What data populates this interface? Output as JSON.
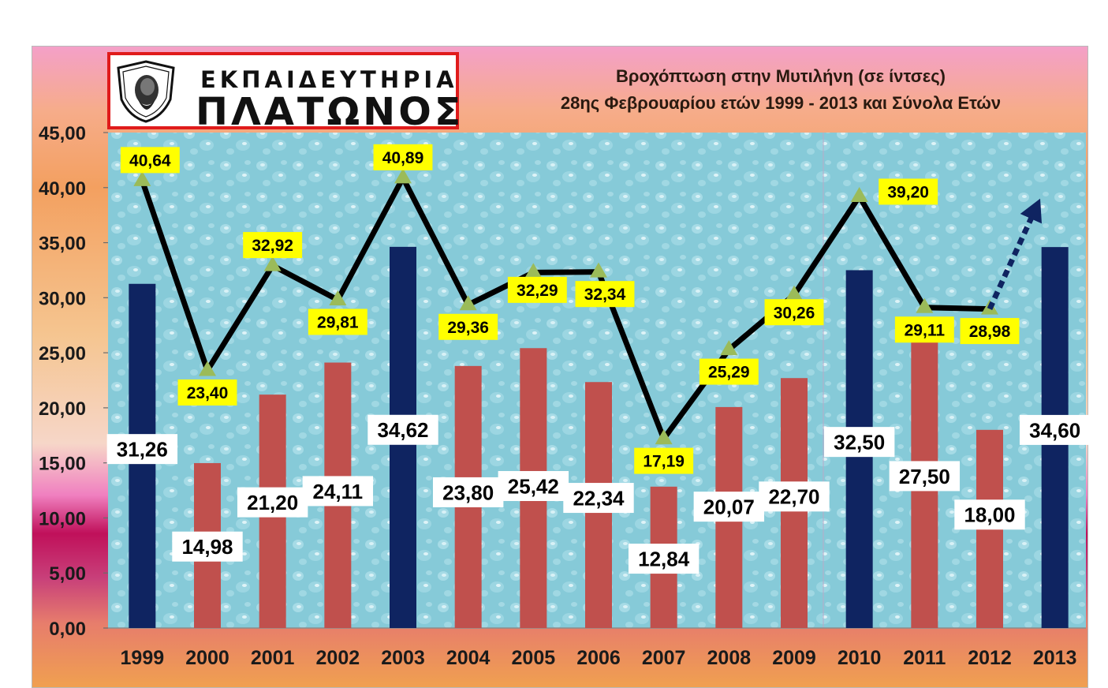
{
  "logo": {
    "line1": "ΕΚΠΑΙΔΕΥΤΗΡΙΑ",
    "line2": "ΠΛΑΤΩΝΟΣ",
    "seal_text": "ΕΚΠΑΙΔΕΥΤΗΡΙΑ ΠΛΑΤΩΝΟΣ"
  },
  "chart_data": {
    "type": "bar",
    "title": "Βροχόπτωση στην Μυτιλήνη (σε ίντσες)",
    "subtitle": "28ης Φεβρουαρίου ετών 1999 - 2013 και Σύνολα Ετών",
    "xlabel": "",
    "ylabel": "",
    "ylim": [
      0,
      45
    ],
    "yticks": [
      "0,00",
      "5,00",
      "10,00",
      "15,00",
      "20,00",
      "25,00",
      "30,00",
      "35,00",
      "40,00",
      "45,00"
    ],
    "grid": false,
    "categories": [
      "1999",
      "2000",
      "2001",
      "2002",
      "2003",
      "2004",
      "2005",
      "2006",
      "2007",
      "2008",
      "2009",
      "2010",
      "2011",
      "2012",
      "2013"
    ],
    "bar_series": {
      "values": [
        31.26,
        14.98,
        21.2,
        24.11,
        34.62,
        23.8,
        25.42,
        22.34,
        12.84,
        20.07,
        22.7,
        32.5,
        27.5,
        18.0,
        34.6
      ],
      "labels": [
        "31,26",
        "14,98",
        "21,20",
        "24,11",
        "34,62",
        "23,80",
        "25,42",
        "22,34",
        "12,84",
        "20,07",
        "22,70",
        "32,50",
        "27,50",
        "18,00",
        "34,60"
      ],
      "highlight_indices": [
        0,
        4,
        11,
        14
      ],
      "color": "#c0504d",
      "highlight_color": "#0f2461"
    },
    "line_series": {
      "values": [
        40.64,
        23.4,
        32.92,
        29.81,
        40.89,
        29.36,
        32.29,
        32.34,
        17.19,
        25.29,
        30.26,
        39.2,
        29.11,
        28.98
      ],
      "labels": [
        "40,64",
        "23,40",
        "32,92",
        "29,81",
        "40,89",
        "29,36",
        "32,29",
        "32,34",
        "17,19",
        "25,29",
        "30,26",
        "39,20",
        "29,11",
        "28,98"
      ],
      "color": "#000000",
      "marker_color": "#9bbb59",
      "label_bg": "#ffff00"
    },
    "trend_arrow": {
      "from_value": 28.98,
      "to_value": 39.0,
      "color": "#0f2461"
    }
  }
}
